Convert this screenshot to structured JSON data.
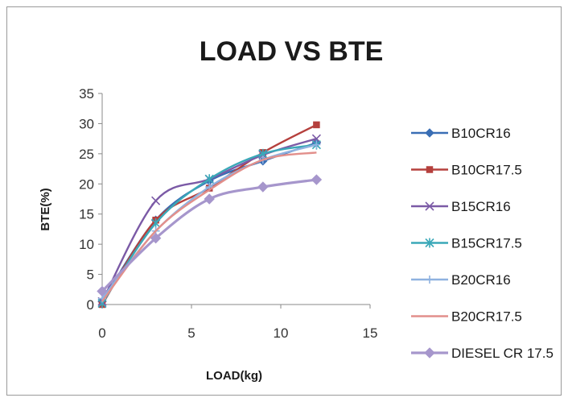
{
  "chart_data": {
    "type": "line",
    "title": "LOAD VS BTE",
    "xlabel": "LOAD(kg)",
    "ylabel": "BTE(%)",
    "xlim": [
      0,
      15
    ],
    "ylim": [
      0,
      35
    ],
    "xticks": [
      "0",
      "5",
      "10",
      "15"
    ],
    "yticks": [
      "0",
      "5",
      "10",
      "15",
      "20",
      "25",
      "30",
      "35"
    ],
    "grid": false,
    "legend_position": "right",
    "x": [
      0,
      3,
      6,
      9,
      12
    ],
    "series": [
      {
        "name": "B10CR16",
        "color": "#3a6eb5",
        "marker": "diamond",
        "values": [
          0.5,
          14,
          20.5,
          23.8,
          26.8
        ]
      },
      {
        "name": "B10CR17.5",
        "color": "#b5403d",
        "marker": "square",
        "values": [
          0,
          14,
          19.3,
          25.2,
          29.8
        ]
      },
      {
        "name": "B15CR16",
        "color": "#7b5aa6",
        "marker": "x",
        "values": [
          0.5,
          17.2,
          20.8,
          24.8,
          27.5
        ]
      },
      {
        "name": "B15CR17.5",
        "color": "#3aa8b8",
        "marker": "star",
        "values": [
          0.2,
          13.5,
          20.8,
          25,
          26.5
        ]
      },
      {
        "name": "B20CR16",
        "color": "#8fb2e0",
        "marker": "plus",
        "values": [
          1,
          12.2,
          19.5,
          24,
          26.5
        ]
      },
      {
        "name": "B20CR17.5",
        "color": "#e28f8b",
        "marker": "none",
        "values": [
          0.5,
          12.2,
          19,
          24,
          25.2
        ]
      },
      {
        "name": "DIESEL CR 17.5",
        "color": "#a696cc",
        "marker": "diamond",
        "values": [
          2.2,
          11,
          17.5,
          19.5,
          20.7
        ]
      }
    ]
  }
}
